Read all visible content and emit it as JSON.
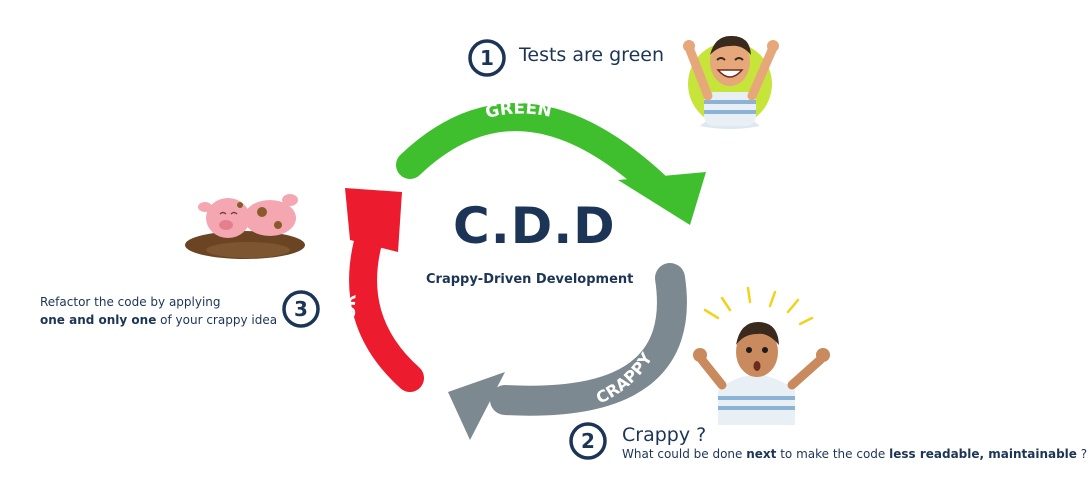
{
  "center": {
    "title": "C.D.D",
    "subtitle": "Crappy-Driven Development"
  },
  "arrows": [
    {
      "label": "GREEN",
      "color": "#3fbf2d"
    },
    {
      "label": "CRAPPY",
      "color": "#7d8990"
    },
    {
      "label": "REFACTOR",
      "color": "#ec1c2e"
    }
  ],
  "steps": [
    {
      "number": "1",
      "title": "Tests are green"
    },
    {
      "number": "2",
      "title": "Crappy ?",
      "desc_pre": "What could be done ",
      "desc_bold1": "next",
      "desc_mid": " to make the code ",
      "desc_bold2": "less readable, maintainable",
      "desc_post": " ?"
    },
    {
      "number": "3",
      "line1": "Refactor the code by applying",
      "line2_bold": "one and only one",
      "line2_rest": " of your crappy idea"
    }
  ],
  "colors": {
    "navy": "#1c3557",
    "green": "#3fbf2d",
    "gray": "#7d8990",
    "red": "#ec1c2e"
  },
  "icons": [
    "happy-avatar-icon",
    "surprised-avatar-icon",
    "pig-in-mud-icon"
  ]
}
